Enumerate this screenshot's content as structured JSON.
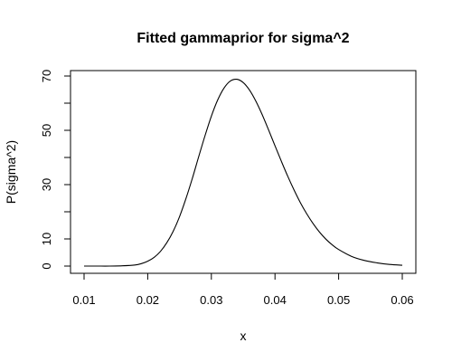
{
  "chart_data": {
    "type": "line",
    "title": "Fitted gammaprior for sigma^2",
    "xlabel": "x",
    "ylabel": "P(sigma^2)",
    "xlim": [
      0.01,
      0.06
    ],
    "ylim": [
      0,
      70
    ],
    "x_ticks": [
      0.01,
      0.02,
      0.03,
      0.04,
      0.05,
      0.06
    ],
    "x_tick_labels": [
      "0.01",
      "0.02",
      "0.03",
      "0.04",
      "0.05",
      "0.06"
    ],
    "y_ticks": [
      0,
      10,
      20,
      30,
      40,
      50,
      60,
      70
    ],
    "y_tick_labels": [
      "0",
      "10",
      "",
      "30",
      "",
      "50",
      "",
      "70"
    ],
    "grid": false,
    "line_color": "#000000",
    "series": [
      {
        "x": [
          0.01,
          0.012,
          0.014,
          0.016,
          0.018,
          0.019,
          0.02,
          0.021,
          0.022,
          0.023,
          0.024,
          0.025,
          0.026,
          0.027,
          0.028,
          0.029,
          0.03,
          0.031,
          0.032,
          0.033,
          0.034,
          0.035,
          0.036,
          0.037,
          0.038,
          0.039,
          0.04,
          0.041,
          0.042,
          0.043,
          0.044,
          0.045,
          0.046,
          0.047,
          0.048,
          0.049,
          0.05,
          0.052,
          0.054,
          0.056,
          0.058,
          0.06
        ],
        "y": [
          0.0,
          0.0,
          0.0,
          0.1,
          0.4,
          0.9,
          1.8,
          3.2,
          5.4,
          8.6,
          12.8,
          18.2,
          24.8,
          32.2,
          40.2,
          48.0,
          55.2,
          61.2,
          65.6,
          68.2,
          68.8,
          67.6,
          64.8,
          60.7,
          55.7,
          50.1,
          44.3,
          38.6,
          33.1,
          28.0,
          23.3,
          19.2,
          15.6,
          12.5,
          9.9,
          7.8,
          6.1,
          3.6,
          2.1,
          1.2,
          0.6,
          0.3
        ]
      }
    ]
  }
}
